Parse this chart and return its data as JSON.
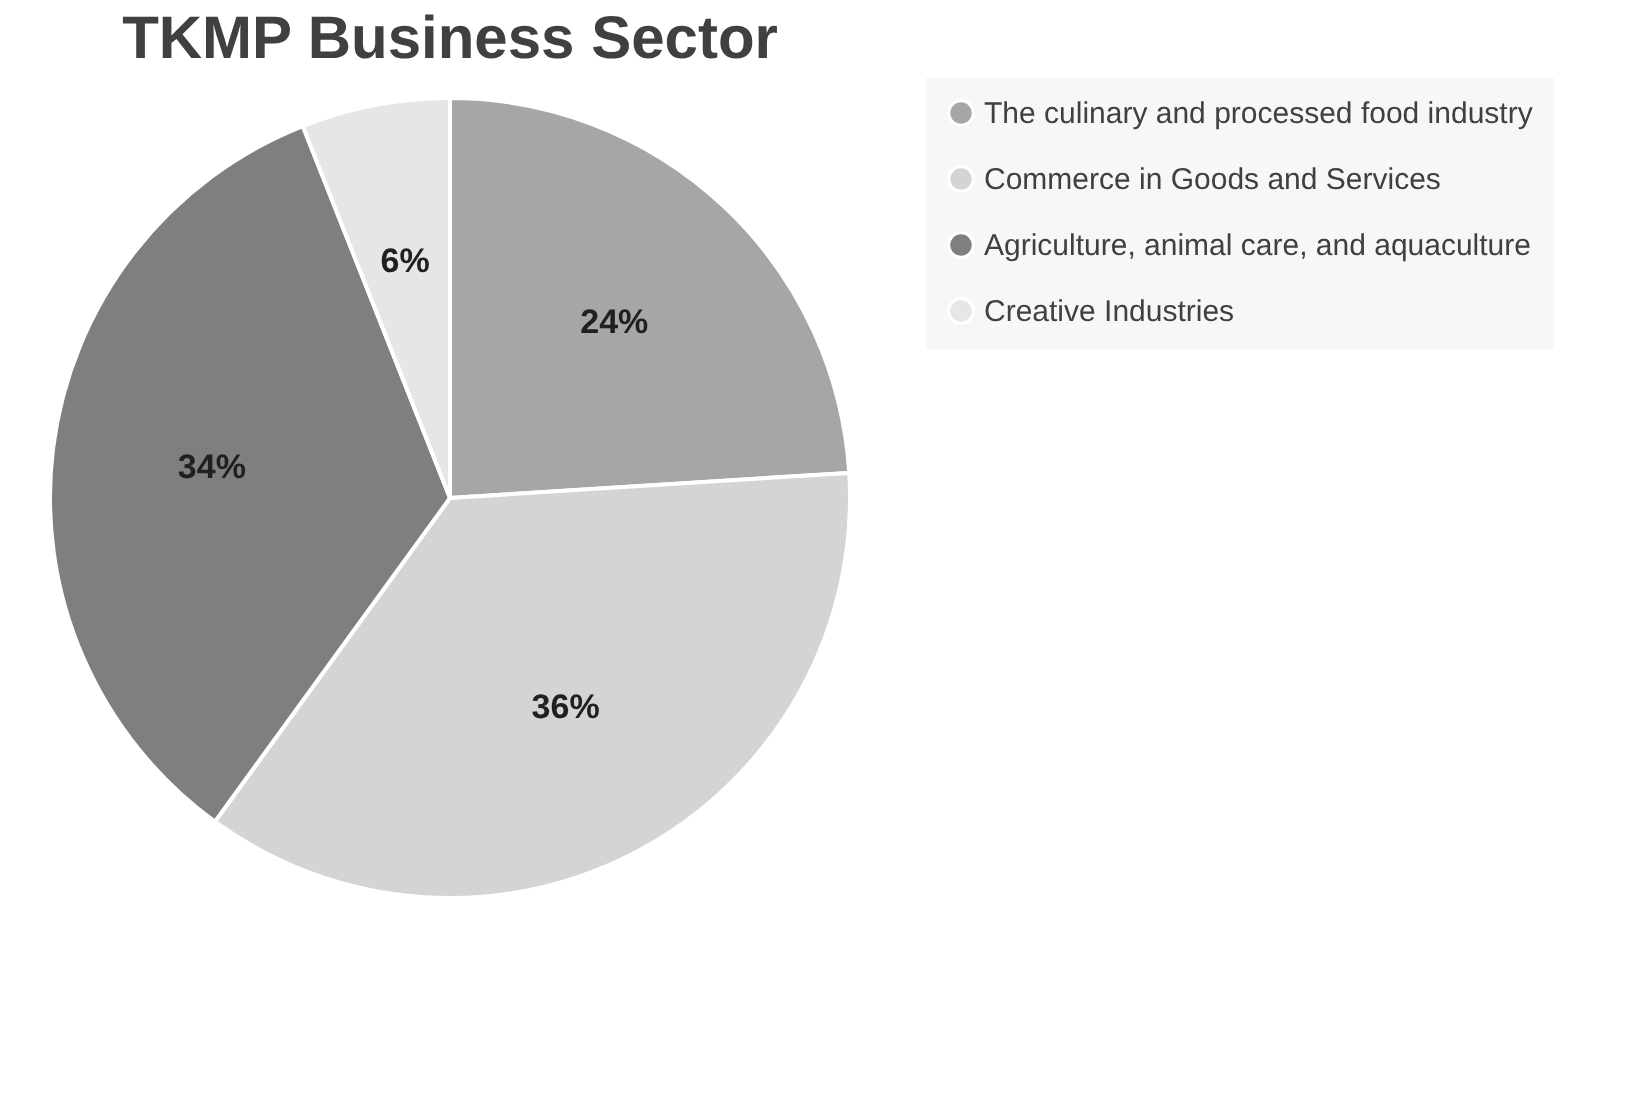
{
  "chart_data": {
    "type": "pie",
    "title": "TKMP Business Sector",
    "categories": [
      "The culinary and processed food industry",
      "Commerce in Goods and Services",
      "Agriculture, animal care, and aquaculture",
      "Creative Industries"
    ],
    "values": [
      24,
      36,
      34,
      6
    ],
    "colors": [
      "#a6a6a6",
      "#d4d4d4",
      "#7f7f7f",
      "#e6e6e6"
    ],
    "value_labels": [
      "24%",
      "36%",
      "34%",
      "6%"
    ],
    "legend": "right"
  }
}
